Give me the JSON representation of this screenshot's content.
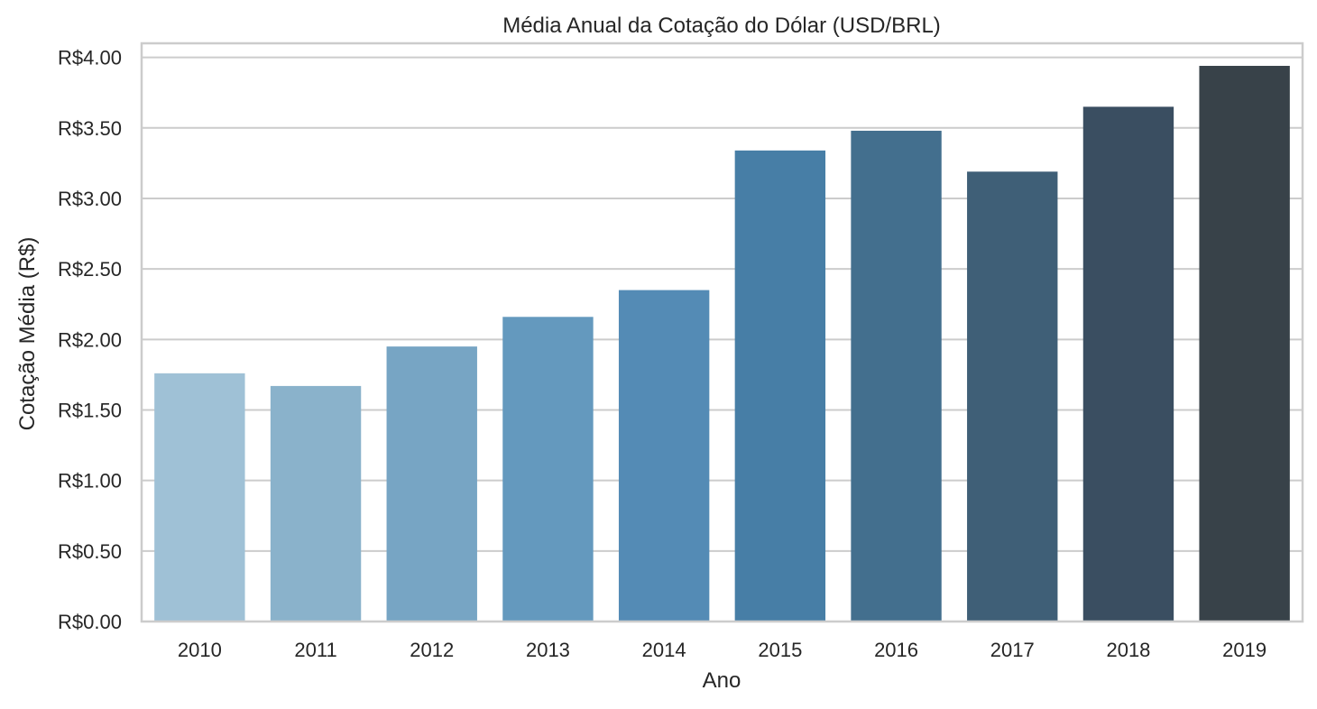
{
  "chart_data": {
    "type": "bar",
    "title": "Média Anual da Cotação do Dólar (USD/BRL)",
    "xlabel": "Ano",
    "ylabel": "Cotação Média (R$)",
    "categories": [
      "2010",
      "2011",
      "2012",
      "2013",
      "2014",
      "2015",
      "2016",
      "2017",
      "2018",
      "2019"
    ],
    "values": [
      1.76,
      1.67,
      1.95,
      2.16,
      2.35,
      3.34,
      3.48,
      3.19,
      3.65,
      3.94
    ],
    "ylim": [
      0,
      4.1
    ],
    "yticks": [
      0,
      0.5,
      1.0,
      1.5,
      2.0,
      2.5,
      3.0,
      3.5,
      4.0
    ],
    "ytick_labels": [
      "R$0.00",
      "R$0.50",
      "R$1.00",
      "R$1.50",
      "R$2.00",
      "R$2.50",
      "R$3.00",
      "R$3.50",
      "R$4.00"
    ],
    "grid": "horizontal",
    "legend": "none",
    "colors": [
      "#9fc1d6",
      "#8ab2cb",
      "#77a5c4",
      "#6499be",
      "#548bb5",
      "#477ea6",
      "#436f8e",
      "#3f5f77",
      "#3a4e61",
      "#384249"
    ],
    "grid_color": "#cccccc",
    "spine_color": "#cccccc"
  }
}
